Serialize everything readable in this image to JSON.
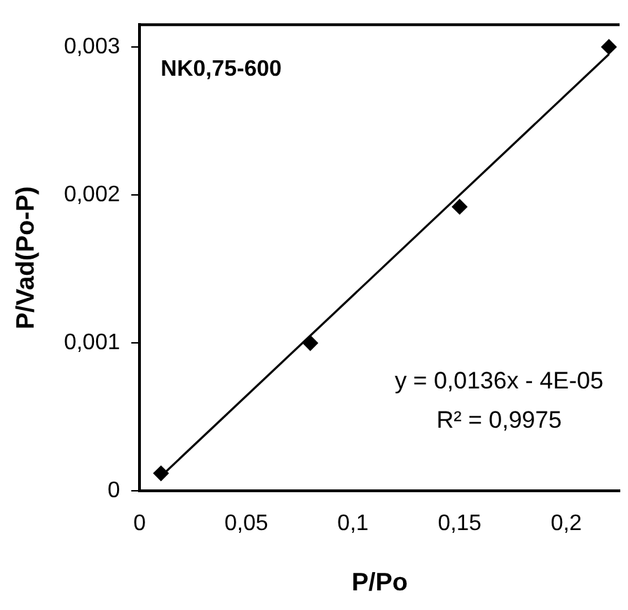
{
  "chart_data": {
    "type": "scatter",
    "xlabel": "P/Po",
    "ylabel": "P/Vad(Po-P)",
    "xlim": [
      0,
      0.225
    ],
    "ylim": [
      0,
      0.00315
    ],
    "xticks": [
      0,
      {
        "value": 0.05,
        "label": "0,05"
      },
      {
        "value": 0.1,
        "label": "0,1"
      },
      {
        "value": 0.15,
        "label": "0,15"
      },
      {
        "value": 0.2,
        "label": "0,2"
      }
    ],
    "yticks": [
      0,
      {
        "value": 0.001,
        "label": "0,001"
      },
      {
        "value": 0.002,
        "label": "0,002"
      },
      {
        "value": 0.003,
        "label": "0,003"
      }
    ],
    "grid": false,
    "legend": false,
    "series": [
      {
        "type": "scatter",
        "marker": "diamond",
        "color": "#000000",
        "x": [
          0.01,
          0.08,
          0.15,
          0.22
        ],
        "values": [
          0.00012,
          0.001,
          0.00192,
          0.003
        ]
      },
      {
        "type": "line",
        "marker": "none",
        "line_style": "solid",
        "color": "#000000",
        "x": [
          0.01,
          0.22
        ],
        "values": [
          0.0001,
          0.00295
        ]
      }
    ],
    "annotations": [
      "NK0,75-600",
      "y = 0,0136x - 4E-05",
      "R² = 0,9975"
    ]
  }
}
